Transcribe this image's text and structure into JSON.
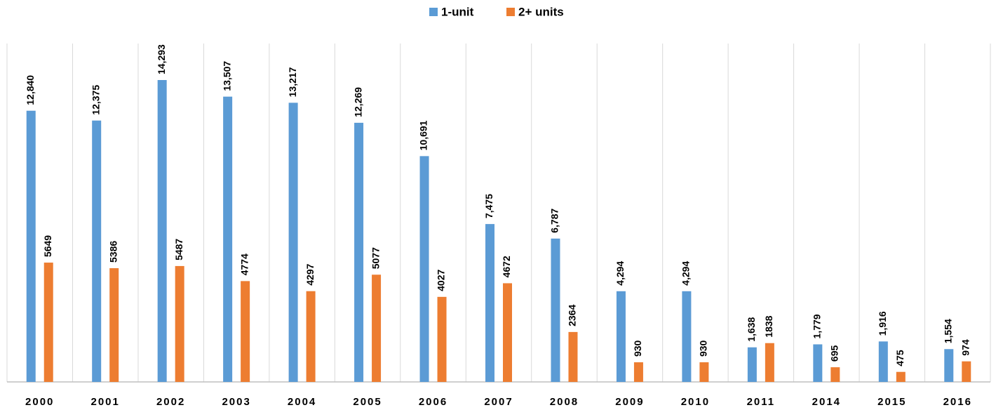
{
  "chart_data": {
    "type": "bar",
    "categories": [
      "2000",
      "2001",
      "2002",
      "2003",
      "2004",
      "2005",
      "2006",
      "2007",
      "2008",
      "2009",
      "2010",
      "2011",
      "2014",
      "2015",
      "2016"
    ],
    "series": [
      {
        "name": "1-unit",
        "color": "#5b9bd5",
        "values": [
          12840,
          12375,
          14293,
          13507,
          13217,
          12269,
          10691,
          7475,
          6787,
          4294,
          4294,
          1638,
          1779,
          1916,
          1554
        ],
        "value_labels": [
          "12,840",
          "12,375",
          "14,293",
          "13,507",
          "13,217",
          "12,269",
          "10,691",
          "7,475",
          "6,787",
          "4,294",
          "4,294",
          "1,638",
          "1,779",
          "1,916",
          "1,554"
        ]
      },
      {
        "name": "2+ units",
        "color": "#ed7d31",
        "values": [
          5649,
          5386,
          5487,
          4774,
          4297,
          5077,
          4027,
          4672,
          2364,
          930,
          930,
          1838,
          695,
          475,
          974
        ]
      }
    ],
    "legend": "top"
  }
}
